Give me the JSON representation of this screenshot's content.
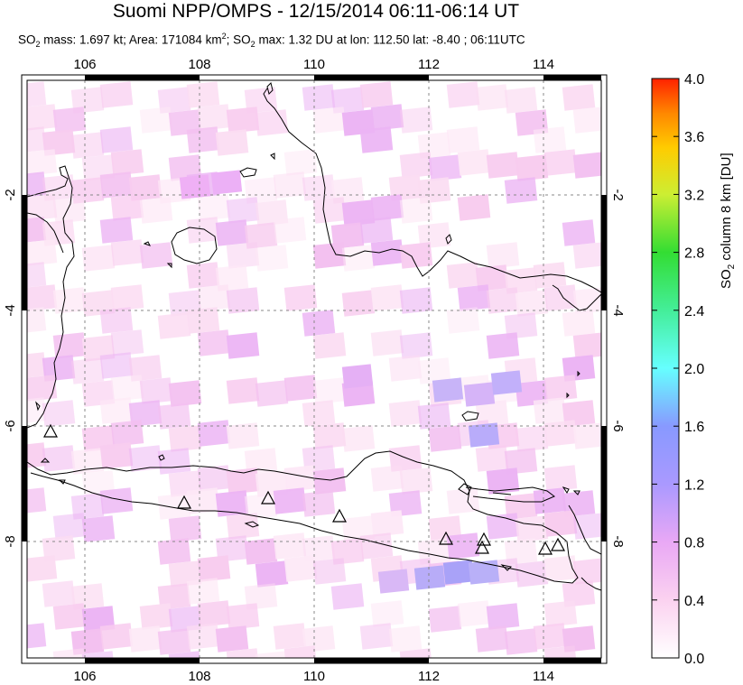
{
  "title": "Suomi NPP/OMPS - 12/15/2014 06:11-06:14 UT",
  "subtitle": {
    "p1": "SO",
    "s1": "2",
    "p2": " mass: 1.697 kt; Area: 171084 km",
    "sup": "2",
    "p3": "; SO",
    "s2": "2",
    "p4": " max: 1.32 DU at lon: 112.50 lat: -8.40 ; 06:11UTC"
  },
  "map": {
    "lon_range": [
      105,
      115
    ],
    "lat_range": [
      -10,
      0
    ],
    "lon_ticks": [
      "106",
      "108",
      "110",
      "112",
      "114"
    ],
    "lat_ticks": [
      "-2",
      "-4",
      "-6",
      "-8"
    ],
    "volcanoes_icon": "triangle-icon"
  },
  "colorbar": {
    "title_pre": "SO",
    "title_sub": "2",
    "title_post": " column 8 km [DU]",
    "labels": [
      "0.0",
      "0.4",
      "0.8",
      "1.2",
      "1.6",
      "2.0",
      "2.4",
      "2.8",
      "3.2",
      "3.6",
      "4.0"
    ],
    "colors": [
      "#ffffff",
      "#fbd2f0",
      "#e9a8f5",
      "#aa99ff",
      "#8899ff",
      "#66ffff",
      "#44ee99",
      "#33dd33",
      "#ccee33",
      "#ffcc00",
      "#ff8800",
      "#ff2200"
    ]
  }
}
